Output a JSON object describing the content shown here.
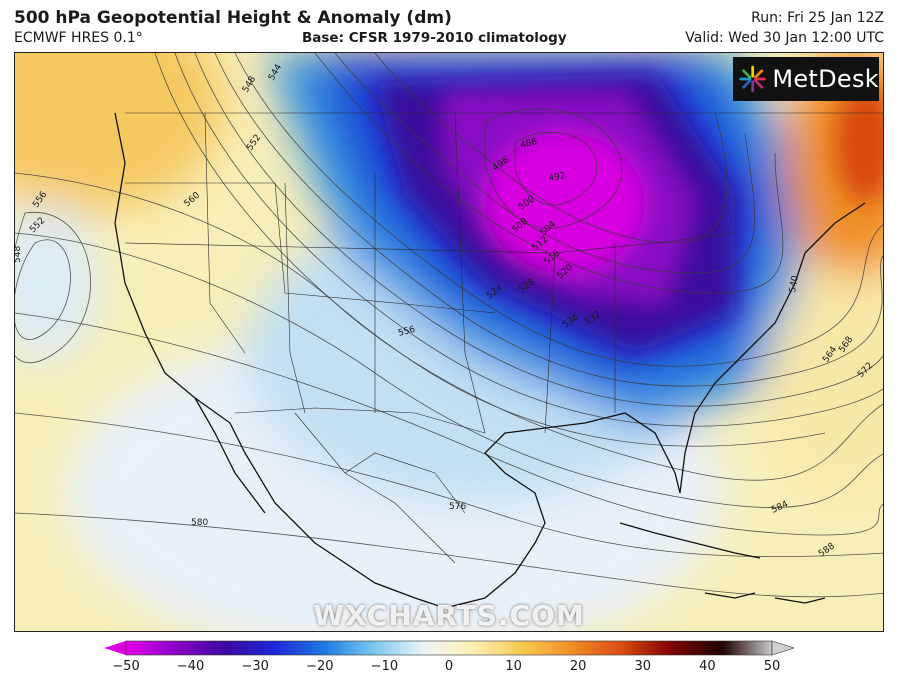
{
  "header": {
    "title": "500 hPa Geopotential Height & Anomaly (dm)",
    "model": "ECMWF HRES 0.1°",
    "base": "Base: CFSR 1979-2010 climatology",
    "run": "Run: Fri 25 Jan 12Z",
    "valid": "Valid: Wed 30 Jan 12:00 UTC"
  },
  "logo": {
    "text": "MetDesk",
    "icon": "metdesk-starburst-icon"
  },
  "watermark": "WXCHARTS.COM",
  "colorbar": {
    "ticks": [
      "−50",
      "−40",
      "−30",
      "−20",
      "−10",
      "0",
      "10",
      "20",
      "30",
      "40",
      "50"
    ],
    "colors": [
      "#e400e4",
      "#8c00c8",
      "#3a0aa0",
      "#1e28d8",
      "#1e7ce0",
      "#7ec8f0",
      "#eef4fa",
      "#fff0b0",
      "#f8c850",
      "#f08c28",
      "#d84a10",
      "#7c0000",
      "#200000",
      "#c8c8c8"
    ]
  },
  "contour_labels": [
    "544",
    "548",
    "552",
    "556",
    "560",
    "552",
    "548",
    "488",
    "492",
    "496",
    "500",
    "504",
    "508",
    "512",
    "516",
    "520",
    "524",
    "528",
    "532",
    "536",
    "540",
    "556",
    "564",
    "568",
    "572",
    "576",
    "580",
    "584",
    "588"
  ]
}
